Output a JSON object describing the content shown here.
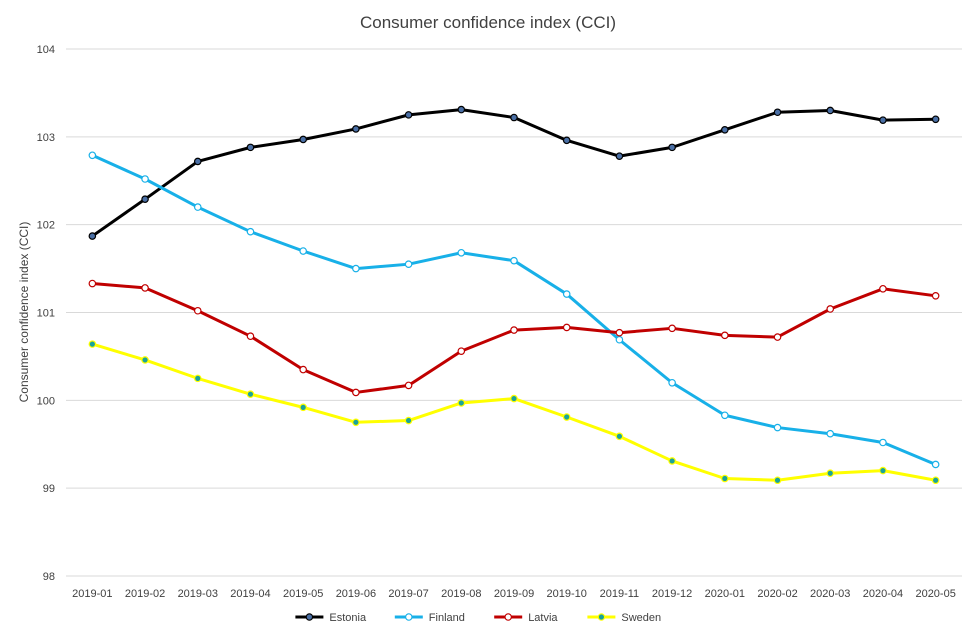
{
  "chart_data": {
    "type": "line",
    "title": "Consumer confidence index (CCI)",
    "xlabel": "",
    "ylabel": "Consumer confidence index (CCI)",
    "ylim": [
      98,
      104
    ],
    "yticks": [
      98,
      99,
      100,
      101,
      102,
      103,
      104
    ],
    "grid": "horizontal",
    "legend_position": "bottom",
    "categories": [
      "2019-01",
      "2019-02",
      "2019-03",
      "2019-04",
      "2019-05",
      "2019-06",
      "2019-07",
      "2019-08",
      "2019-09",
      "2019-10",
      "2019-11",
      "2019-12",
      "2020-01",
      "2020-02",
      "2020-03",
      "2020-04",
      "2020-05"
    ],
    "series": [
      {
        "name": "Estonia",
        "color": "#000000",
        "marker_fill": "#4a6fa5",
        "values": [
          101.87,
          102.29,
          102.72,
          102.88,
          102.97,
          103.09,
          103.25,
          103.31,
          103.22,
          102.96,
          102.78,
          102.88,
          103.08,
          103.28,
          103.3,
          103.19,
          103.2
        ]
      },
      {
        "name": "Finland",
        "color": "#18b0e8",
        "marker_fill": "#ffffff",
        "values": [
          102.79,
          102.52,
          102.2,
          101.92,
          101.7,
          101.5,
          101.55,
          101.68,
          101.59,
          101.21,
          100.69,
          100.2,
          99.83,
          99.69,
          99.62,
          99.52,
          99.27
        ]
      },
      {
        "name": "Latvia",
        "color": "#c00000",
        "marker_fill": "#ffffff",
        "values": [
          101.33,
          101.28,
          101.02,
          100.73,
          100.35,
          100.09,
          100.17,
          100.56,
          100.8,
          100.83,
          100.77,
          100.82,
          100.74,
          100.72,
          101.04,
          101.27,
          101.19
        ]
      },
      {
        "name": "Sweden",
        "color": "#ffff00",
        "marker_fill": "#1aa39a",
        "values": [
          100.64,
          100.46,
          100.25,
          100.07,
          99.92,
          99.75,
          99.77,
          99.97,
          100.02,
          99.81,
          99.59,
          99.31,
          99.11,
          99.09,
          99.17,
          99.2,
          99.09
        ]
      }
    ]
  }
}
